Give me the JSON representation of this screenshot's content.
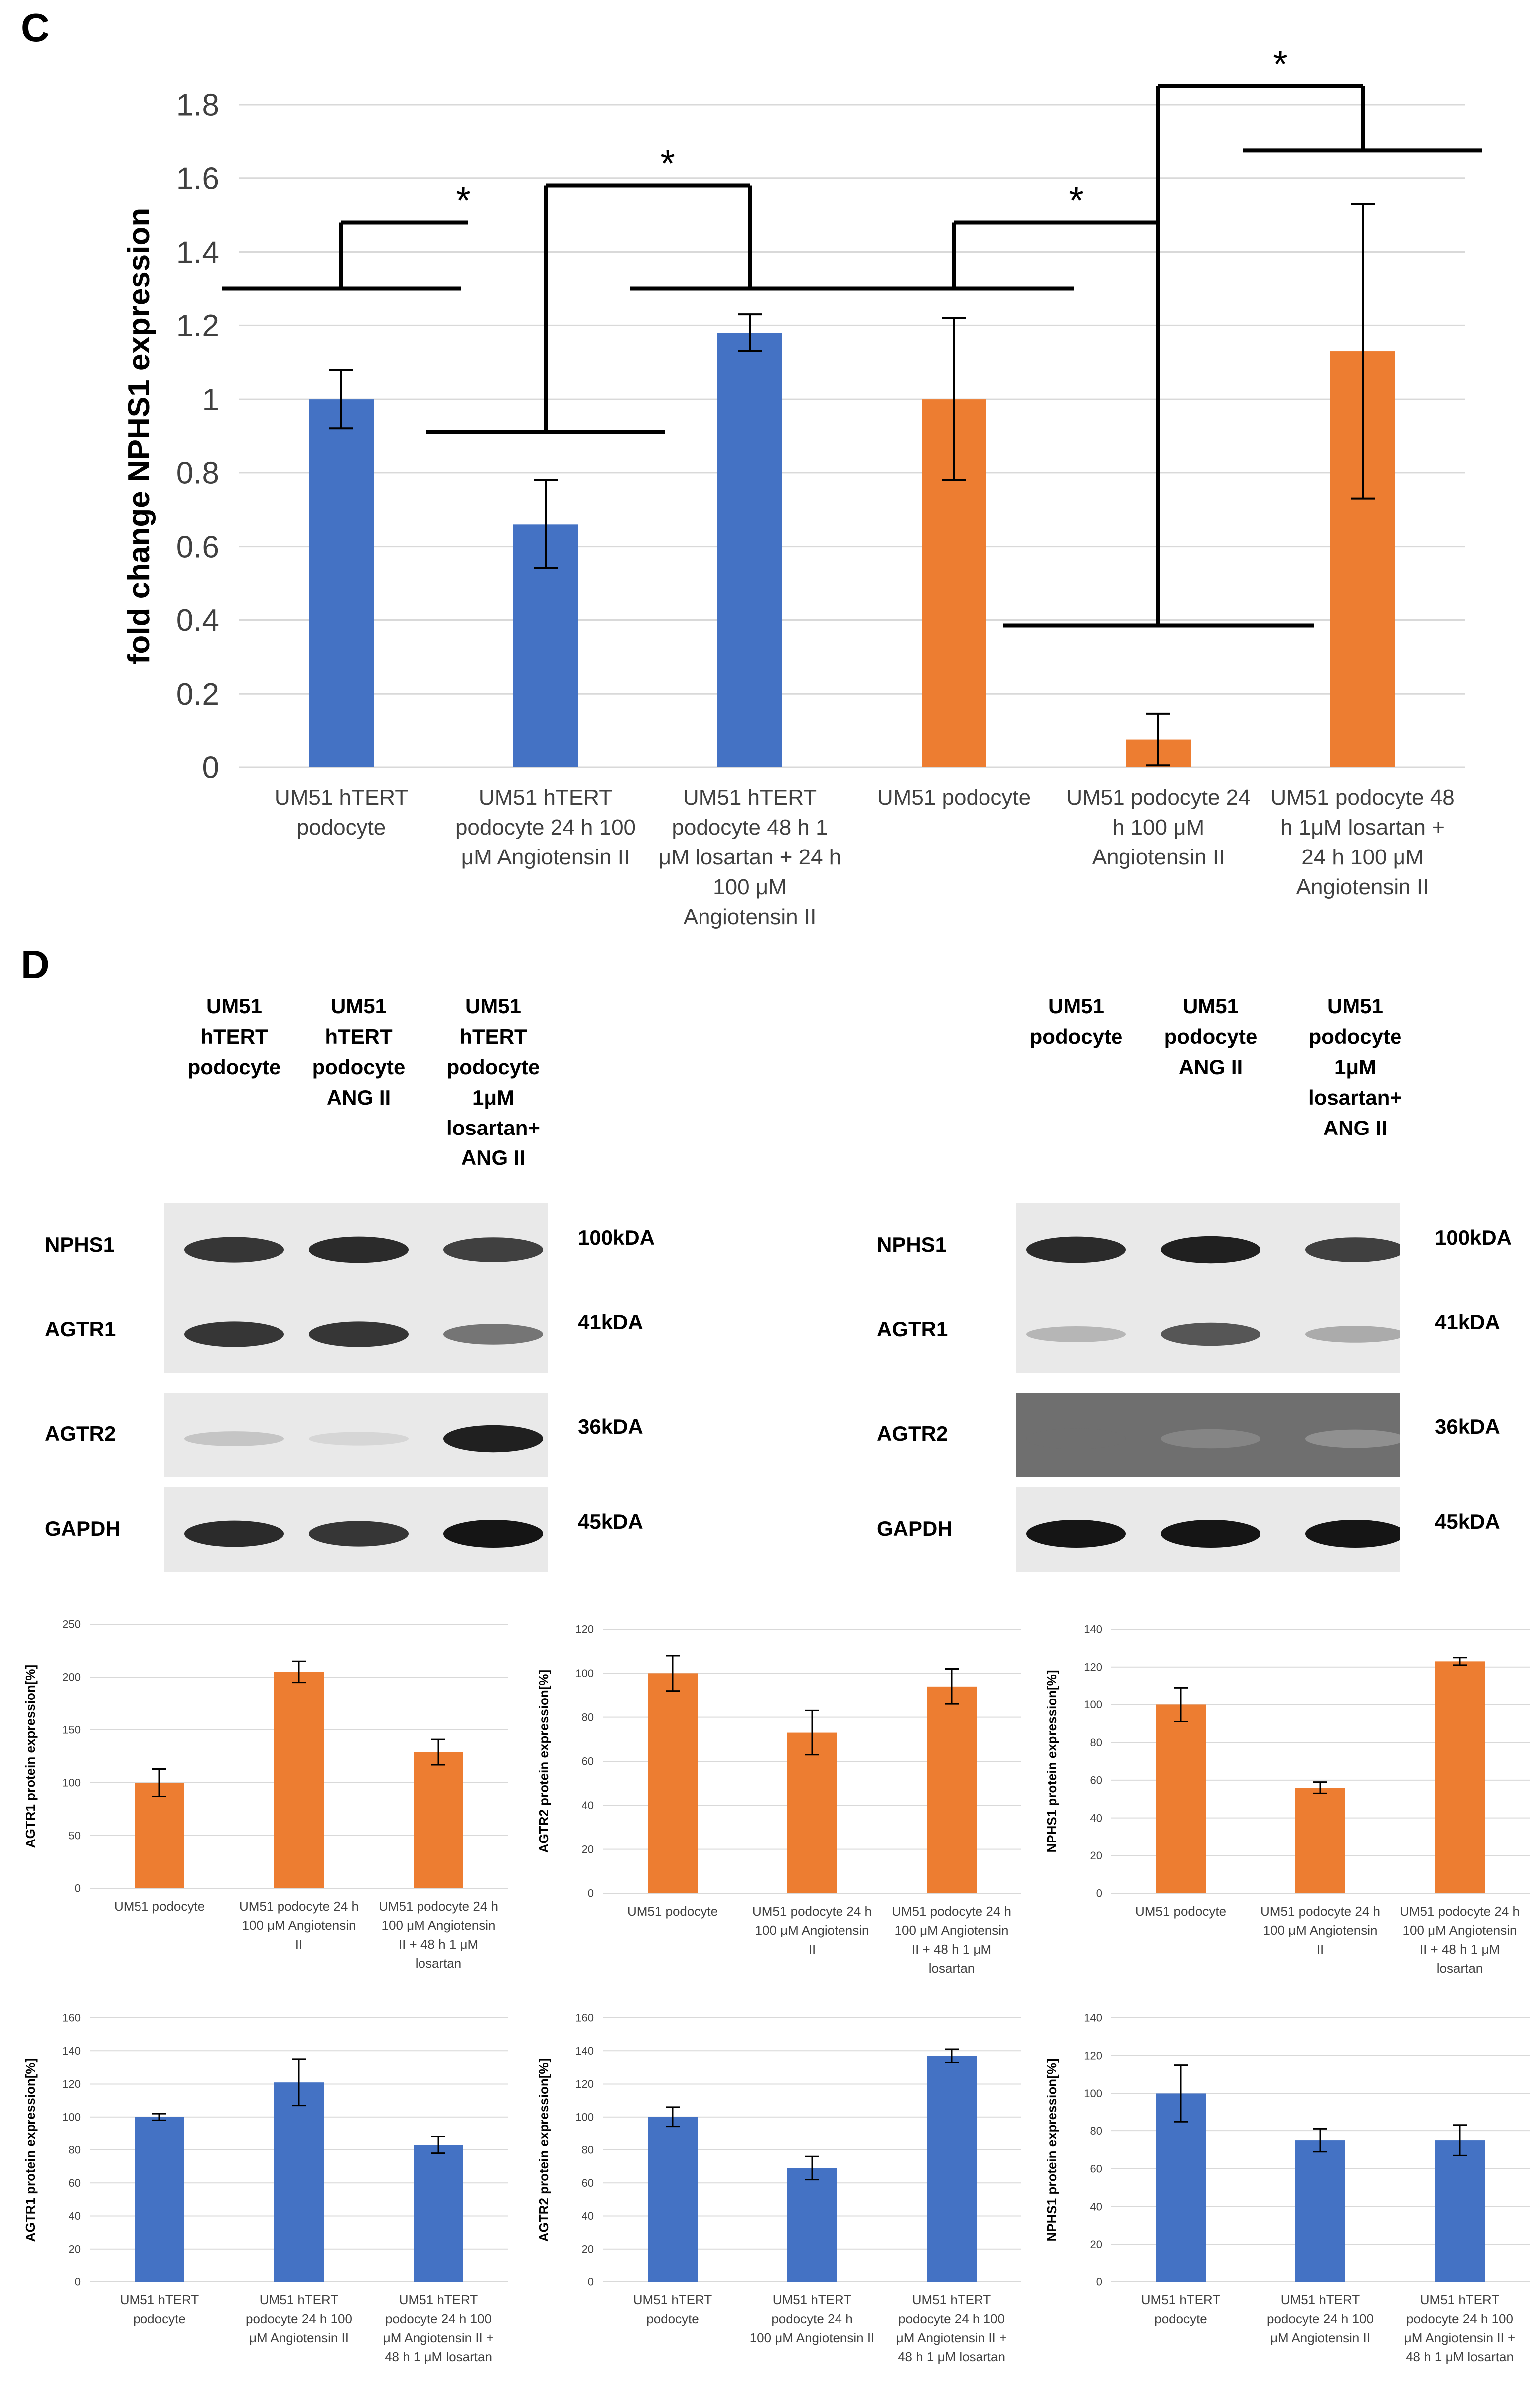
{
  "panels": {
    "c": "C",
    "d": "D"
  },
  "chart_data": [
    {
      "id": "main",
      "type": "bar",
      "title": "",
      "ylabel": "fold change NPHS1 expression",
      "xlabel": "",
      "ylim": [
        0,
        1.8
      ],
      "ytick_labels": [
        "0",
        "0.2",
        "0.4",
        "0.6",
        "0.8",
        "1",
        "1.2",
        "1.4",
        "1.6",
        "1.8"
      ],
      "grid": true,
      "categories": [
        [
          "UM51 hTERT",
          "podocyte"
        ],
        [
          "UM51 hTERT",
          "podocyte 24 h 100",
          "μM Angiotensin II"
        ],
        [
          "UM51 hTERT",
          "podocyte 48 h 1",
          "μM losartan + 24 h",
          "100 μM",
          "Angiotensin II"
        ],
        [
          "UM51 podocyte"
        ],
        [
          "UM51 podocyte 24",
          "h 100 μM",
          "Angiotensin II"
        ],
        [
          "UM51 podocyte 48",
          "h 1μM losartan +",
          "24 h 100 μM",
          "Angiotensin II"
        ]
      ],
      "values": [
        1.0,
        0.66,
        1.18,
        1.0,
        0.075,
        1.13
      ],
      "errors": [
        0.08,
        0.12,
        0.05,
        0.22,
        0.07,
        0.4
      ],
      "colors": [
        "#4472c4",
        "#4472c4",
        "#4472c4",
        "#ed7d31",
        "#ed7d31",
        "#ed7d31"
      ],
      "significance": [
        {
          "pair": [
            0,
            1
          ],
          "label": "*"
        },
        {
          "pair": [
            1,
            2
          ],
          "label": "*"
        },
        {
          "pair": [
            3,
            4
          ],
          "label": "*"
        },
        {
          "pair": [
            4,
            5
          ],
          "label": "*"
        }
      ]
    },
    {
      "id": "o1",
      "type": "bar",
      "color": "#ed7d31",
      "ylabel": "AGTR1 protein expression[%]",
      "ylim": [
        0,
        250
      ],
      "ytick_labels": [
        "0",
        "50",
        "100",
        "150",
        "200",
        "250"
      ],
      "categories": [
        [
          "UM51 podocyte"
        ],
        [
          "UM51 podocyte 24 h",
          "100 μM Angiotensin",
          "II"
        ],
        [
          "UM51 podocyte 24 h",
          "100 μM Angiotensin",
          "II + 48 h 1 μM",
          "losartan"
        ]
      ],
      "values": [
        100,
        205,
        129
      ],
      "errors": [
        13,
        10,
        12
      ]
    },
    {
      "id": "o2",
      "type": "bar",
      "color": "#ed7d31",
      "ylabel": "AGTR2 protein expression[%]",
      "ylim": [
        0,
        120
      ],
      "ytick_labels": [
        "0",
        "20",
        "40",
        "60",
        "80",
        "100",
        "120"
      ],
      "categories": [
        [
          "UM51 podocyte"
        ],
        [
          "UM51 podocyte 24 h",
          "100 μM Angiotensin",
          "II"
        ],
        [
          "UM51 podocyte 24 h",
          "100 μM Angiotensin",
          "II + 48 h 1 μM",
          "losartan"
        ]
      ],
      "values": [
        100,
        73,
        94
      ],
      "errors": [
        8,
        10,
        8
      ]
    },
    {
      "id": "o3",
      "type": "bar",
      "color": "#ed7d31",
      "ylabel": "NPHS1 protein expression[%]",
      "ylim": [
        0,
        140
      ],
      "ytick_labels": [
        "0",
        "20",
        "40",
        "60",
        "80",
        "100",
        "120",
        "140"
      ],
      "categories": [
        [
          "UM51 podocyte"
        ],
        [
          "UM51 podocyte 24 h",
          "100 μM Angiotensin",
          "II"
        ],
        [
          "UM51 podocyte 24 h",
          "100 μM Angiotensin",
          "II + 48 h 1 μM",
          "losartan"
        ]
      ],
      "values": [
        100,
        56,
        123
      ],
      "errors": [
        9,
        3,
        2
      ]
    },
    {
      "id": "b1",
      "type": "bar",
      "color": "#4472c4",
      "ylabel": "AGTR1 protein expression[%]",
      "ylim": [
        0,
        160
      ],
      "ytick_labels": [
        "0",
        "20",
        "40",
        "60",
        "80",
        "100",
        "120",
        "140",
        "160"
      ],
      "categories": [
        [
          "UM51 hTERT",
          "podocyte"
        ],
        [
          "UM51 hTERT",
          "podocyte 24 h 100",
          "μM Angiotensin II"
        ],
        [
          "UM51 hTERT",
          "podocyte 24 h 100",
          "μM Angiotensin II +",
          "48 h 1 μM losartan"
        ]
      ],
      "values": [
        100,
        121,
        83
      ],
      "errors": [
        2,
        14,
        5
      ]
    },
    {
      "id": "b2",
      "type": "bar",
      "color": "#4472c4",
      "ylabel": "AGTR2 protein expression[%]",
      "ylim": [
        0,
        160
      ],
      "ytick_labels": [
        "0",
        "20",
        "40",
        "60",
        "80",
        "100",
        "120",
        "140",
        "160"
      ],
      "categories": [
        [
          "UM51 hTERT",
          "podocyte"
        ],
        [
          "UM51 hTERT",
          "podocyte 24 h",
          "100 μM Angiotensin II"
        ],
        [
          "UM51 hTERT",
          "podocyte 24 h 100",
          "μM Angiotensin II +",
          "48 h 1 μM losartan"
        ]
      ],
      "values": [
        100,
        69,
        137
      ],
      "errors": [
        6,
        7,
        4
      ]
    },
    {
      "id": "b3",
      "type": "bar",
      "color": "#4472c4",
      "ylabel": "NPHS1 protein expression[%]",
      "ylim": [
        0,
        140
      ],
      "ytick_labels": [
        "0",
        "20",
        "40",
        "60",
        "80",
        "100",
        "120",
        "140"
      ],
      "categories": [
        [
          "UM51 hTERT",
          "podocyte"
        ],
        [
          "UM51 hTERT",
          "podocyte 24 h 100",
          "μM Angiotensin II"
        ],
        [
          "UM51 hTERT",
          "podocyte 24 h 100",
          "μM Angiotensin II +",
          "48 h 1 μM losartan"
        ]
      ],
      "values": [
        100,
        75,
        75
      ],
      "errors": [
        15,
        6,
        8
      ]
    }
  ],
  "blots": {
    "left": {
      "lanes": [
        [
          "UM51",
          "hTERT",
          "podocyte"
        ],
        [
          "UM51",
          "hTERT",
          "podocyte",
          "ANG II"
        ],
        [
          "UM51",
          "hTERT",
          "podocyte",
          "1μM",
          "losartan+",
          "ANG II"
        ]
      ],
      "rows": [
        {
          "protein": "NPHS1",
          "kda": "100kDA",
          "intensity": [
            0.85,
            0.9,
            0.8
          ]
        },
        {
          "protein": "AGTR1",
          "kda": "41kDA",
          "intensity": [
            0.85,
            0.85,
            0.55
          ]
        },
        {
          "protein": "AGTR2",
          "kda": "36kDA",
          "intensity": [
            0.18,
            0.1,
            0.95
          ]
        },
        {
          "protein": "GAPDH",
          "kda": "45kDA",
          "intensity": [
            0.9,
            0.85,
            1.0
          ]
        }
      ]
    },
    "right": {
      "lanes": [
        [
          "UM51",
          "podocyte"
        ],
        [
          "UM51",
          "podocyte",
          "ANG II"
        ],
        [
          "UM51",
          "podocyte",
          "1μM",
          "losartan+",
          "ANG II"
        ]
      ],
      "rows": [
        {
          "protein": "NPHS1",
          "kda": "100kDA",
          "intensity": [
            0.9,
            0.95,
            0.8
          ]
        },
        {
          "protein": "AGTR1",
          "kda": "41kDA",
          "intensity": [
            0.25,
            0.7,
            0.3
          ]
        },
        {
          "protein": "AGTR2",
          "kda": "36kDA",
          "intensity": [
            0.55,
            0.45,
            0.4
          ]
        },
        {
          "protein": "GAPDH",
          "kda": "45kDA",
          "intensity": [
            1.0,
            1.0,
            1.0
          ]
        }
      ]
    }
  }
}
